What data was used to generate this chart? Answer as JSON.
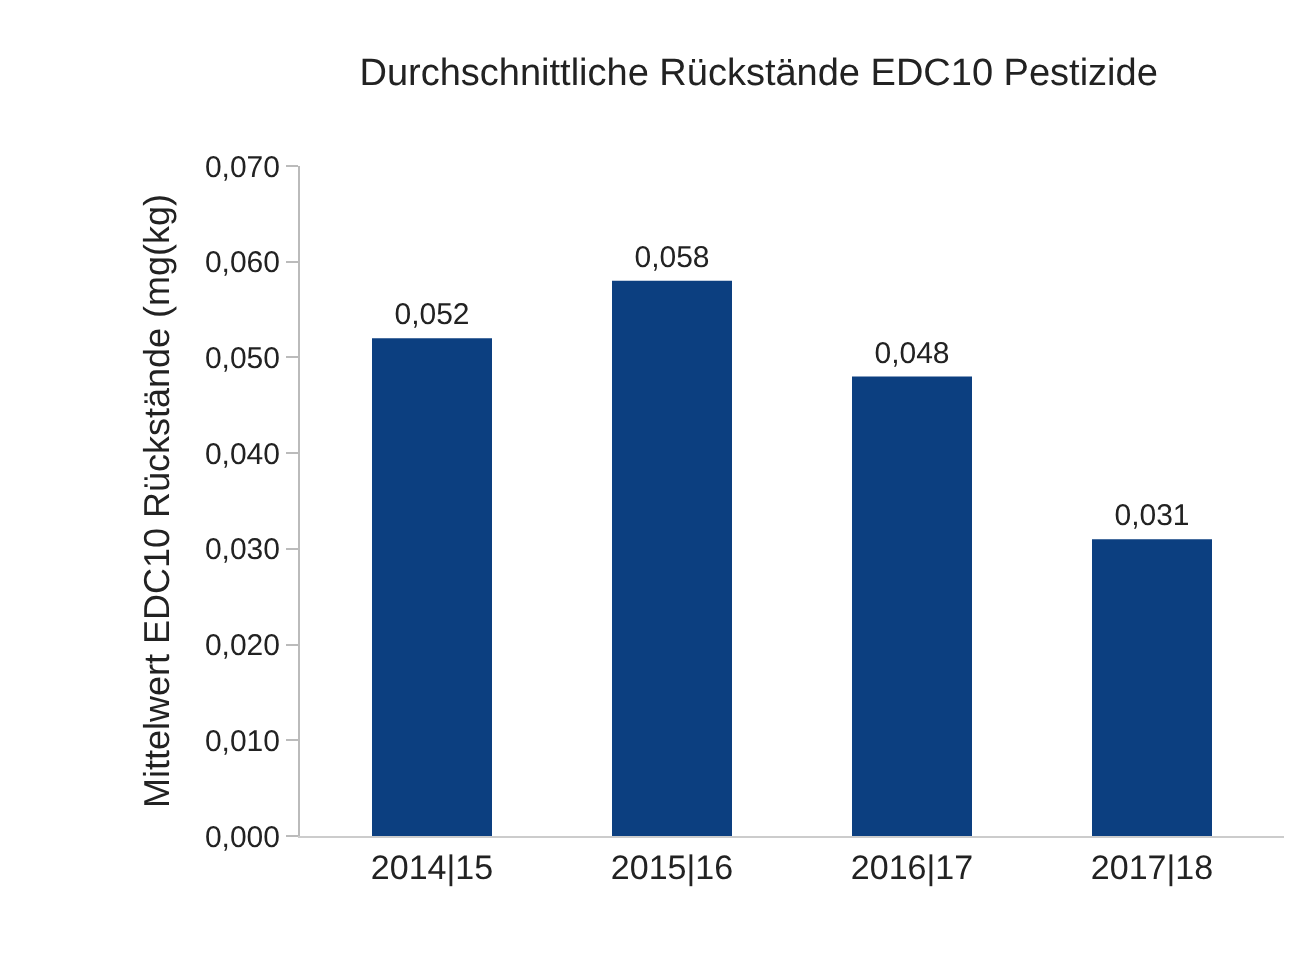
{
  "chart_data": {
    "type": "bar",
    "title": "Durchschnittliche Rückstände EDC10 Pestizide",
    "ylabel": "Mittelwert EDC10 Rückstände (mg(kg)",
    "categories": [
      "2014|15",
      "2015|16",
      "2016|17",
      "2017|18"
    ],
    "values": [
      0.052,
      0.058,
      0.048,
      0.031
    ],
    "value_labels": [
      "0,052",
      "0,058",
      "0,048",
      "0,031"
    ],
    "color": "#0c3f80",
    "ylim": [
      0,
      0.07
    ],
    "yticks": [
      {
        "value": 0,
        "label": "0,000"
      },
      {
        "value": 0.01,
        "label": "0,010"
      },
      {
        "value": 0.02,
        "label": "0,020"
      },
      {
        "value": 0.03,
        "label": "0,030"
      },
      {
        "value": 0.04,
        "label": "0,040"
      },
      {
        "value": 0.05,
        "label": "0,050"
      },
      {
        "value": 0.06,
        "label": "0,060"
      },
      {
        "value": 0.07,
        "label": "0,070"
      }
    ],
    "grid": false,
    "legend": false
  }
}
